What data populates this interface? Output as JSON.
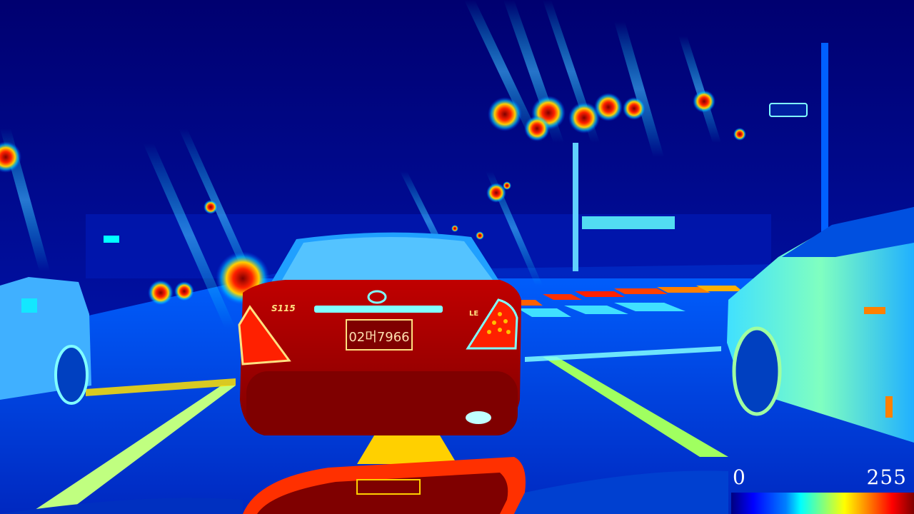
{
  "image": {
    "colormap": "jet",
    "palette": {
      "low": "#00007f",
      "blue": "#0000ff",
      "cyan": "#00ffff",
      "yellow": "#ffff00",
      "red": "#ff0000",
      "high": "#7f0000"
    }
  },
  "colorbar": {
    "min_label": "0",
    "max_label": "255"
  },
  "vehicle": {
    "badge_model": "S115",
    "badge_trim": "LE",
    "license_plate": "02머7966"
  }
}
